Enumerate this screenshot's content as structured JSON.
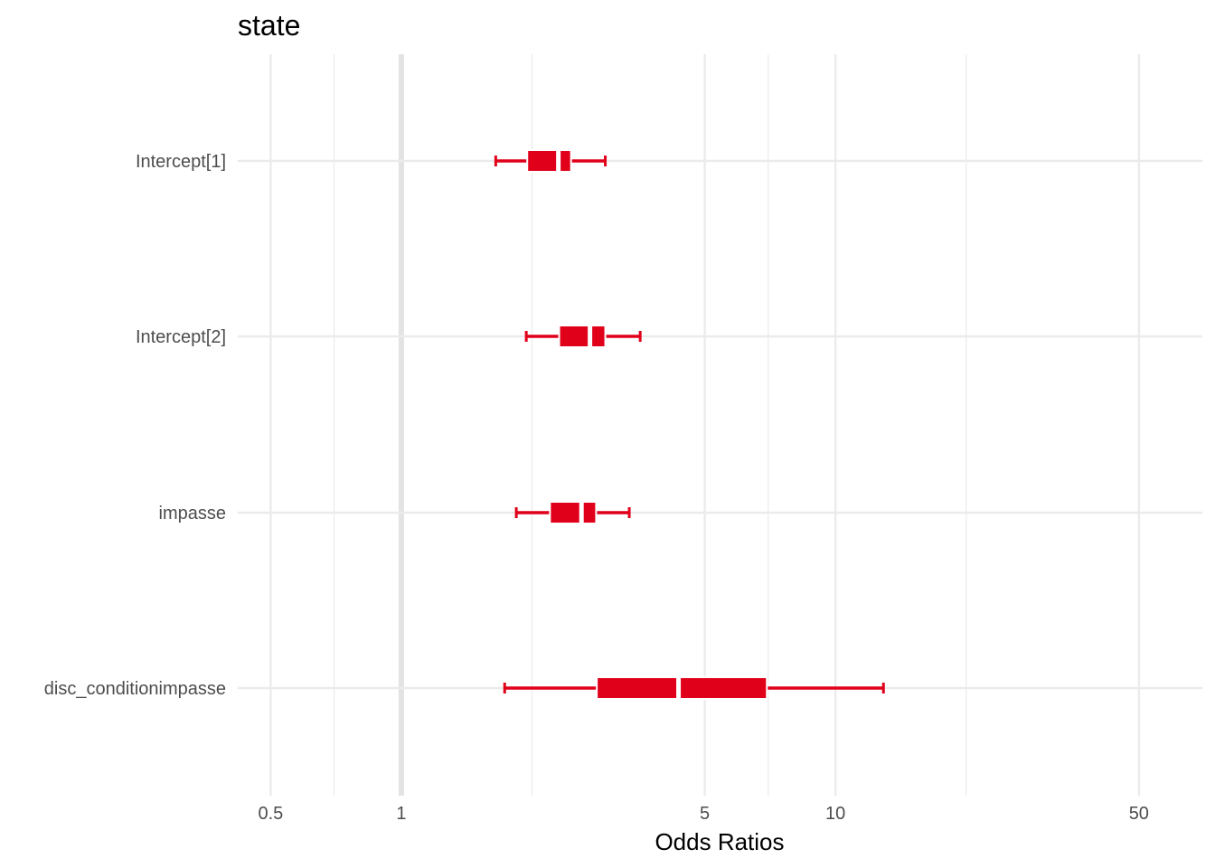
{
  "chart_data": {
    "type": "forest",
    "title": "state",
    "xlabel": "Odds Ratios",
    "ylabel": "",
    "x_scale": "log10",
    "xlim": [
      0.42,
      70
    ],
    "x_ticks": [
      {
        "value": 0.5,
        "label": "0.5"
      },
      {
        "value": 1,
        "label": "1"
      },
      {
        "value": 5,
        "label": "5"
      },
      {
        "value": 10,
        "label": "10"
      },
      {
        "value": 50,
        "label": "50"
      }
    ],
    "x_minor_ticks": [
      0.7,
      2,
      7,
      20
    ],
    "reference_line": 1,
    "grid": true,
    "color": "#e0001a",
    "terms": [
      {
        "label": "Intercept[1]",
        "estimate": 2.3,
        "inner_low": 1.95,
        "inner_high": 2.46,
        "outer_low": 1.65,
        "outer_high": 2.95
      },
      {
        "label": "Intercept[2]",
        "estimate": 2.72,
        "inner_low": 2.31,
        "inner_high": 2.95,
        "outer_low": 1.94,
        "outer_high": 3.55
      },
      {
        "label": "impasse",
        "estimate": 2.6,
        "inner_low": 2.2,
        "inner_high": 2.81,
        "outer_low": 1.84,
        "outer_high": 3.35
      },
      {
        "label": "disc_conditionimpasse",
        "estimate": 4.35,
        "inner_low": 2.82,
        "inner_high": 6.95,
        "outer_low": 1.73,
        "outer_high": 12.9
      }
    ]
  }
}
